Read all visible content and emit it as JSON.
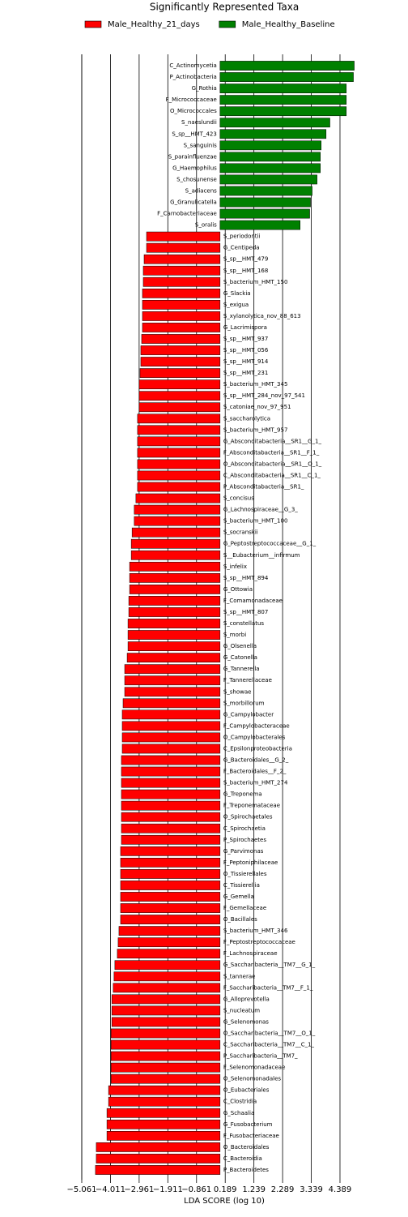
{
  "chart_data": {
    "type": "barh",
    "title": "Significantly Represented Taxa",
    "xlabel": "LDA SCORE (log 10)",
    "categories": [
      "C_Actinomycetia",
      "P_Actinobacteria",
      "G_Rothia",
      "F_Micrococcaceae",
      "O_Micrococcales",
      "S_naeslundii",
      "S_sp__HMT_423",
      "S_sanguinis",
      "S_parainfluenzae",
      "G_Haemophilus",
      "S_chosunense",
      "S_adiacens",
      "G_Granulicatella",
      "F_Carnobacteriaceae",
      "S_oralis",
      "S_periodontii",
      "G_Centipeda",
      "S_sp__HMT_479",
      "S_sp__HMT_168",
      "S_bacterium_HMT_150",
      "G_Slackia",
      "S_exigua",
      "S_xylanolytica_nov_88_613",
      "G_Lacrimispora",
      "S_sp__HMT_937",
      "S_sp__HMT_056",
      "S_sp__HMT_914",
      "S_sp__HMT_231",
      "S_bacterium_HMT_345",
      "S_sp__HMT_284_nov_97_541",
      "S_catoniae_nov_97_951",
      "S_saccharolytica",
      "S_bacterium_HMT_957",
      "G_Absconditabacteria__SR1__G_1_",
      "F_Absconditabacteria__SR1__F_1_",
      "O_Absconditabacteria__SR1__O_1_",
      "C_Absconditabacteria__SR1__C_1_",
      "P_Absconditabacteria__SR1_",
      "S_concisus",
      "G_Lachnospiraceae__G_3_",
      "S_bacterium_HMT_100",
      "S_socranskii",
      "G_Peptostreptococcaceae__G_1_",
      "S__Eubacterium__infirmum",
      "S_infelix",
      "S_sp__HMT_894",
      "G_Ottowia",
      "F_Comamonadaceae",
      "S_sp__HMT_807",
      "S_constellatus",
      "S_morbi",
      "G_Olsenella",
      "G_Catonella",
      "G_Tannerella",
      "F_Tannerellaceae",
      "S_showae",
      "S_morbillorum",
      "G_Campylobacter",
      "F_Campylobacteraceae",
      "O_Campylobacterales",
      "C_Epsilonproteobacteria",
      "G_Bacteroidales__G_2_",
      "F_Bacteroidales__F_2_",
      "S_bacterium_HMT_274",
      "G_Treponema",
      "F_Treponemataceae",
      "O_Spirochaetales",
      "C_Spirochaetia",
      "P_Spirochaetes",
      "G_Parvimonas",
      "F_Peptoniphilaceae",
      "O_Tissierellales",
      "C_Tissierellia",
      "G_Gemella",
      "F_Gemellaceae",
      "O_Bacillales",
      "S_bacterium_HMT_346",
      "F_Peptostreptococcaceae",
      "F_Lachnospiraceae",
      "G_Saccharibacteria__TM7__G_1_",
      "S_tannerae",
      "F_Saccharibacteria__TM7__F_1_",
      "G_Alloprevotella",
      "S_nucleatum",
      "G_Selenomonas",
      "O_Saccharibacteria__TM7__O_1_",
      "C_Saccharibacteria__TM7__C_1_",
      "P_Saccharibacteria__TM7_",
      "F_Selenomonadaceae",
      "O_Selenomonadales",
      "O_Eubacteriales",
      "C_Clostridia",
      "G_Schaalia",
      "G_Fusobacterium",
      "F_Fusobacteriaceae",
      "O_Bacteroidales",
      "C_Bacteroidia",
      "P_Bacteroidetes"
    ],
    "series": [
      {
        "name": "Male_Healthy_21_days",
        "color": "#ff0000",
        "values": [
          null,
          null,
          null,
          null,
          null,
          null,
          null,
          null,
          null,
          null,
          null,
          null,
          null,
          null,
          null,
          -2.69,
          -2.69,
          -2.78,
          -2.81,
          -2.81,
          -2.84,
          -2.84,
          -2.84,
          -2.84,
          -2.87,
          -2.9,
          -2.9,
          -2.93,
          -2.96,
          -2.96,
          -2.96,
          -3.02,
          -3.02,
          -3.02,
          -3.02,
          -3.02,
          -3.02,
          -3.02,
          -3.08,
          -3.14,
          -3.14,
          -3.22,
          -3.25,
          -3.25,
          -3.31,
          -3.31,
          -3.31,
          -3.34,
          -3.34,
          -3.37,
          -3.37,
          -3.37,
          -3.4,
          -3.49,
          -3.49,
          -3.49,
          -3.55,
          -3.58,
          -3.58,
          -3.58,
          -3.58,
          -3.61,
          -3.61,
          -3.61,
          -3.61,
          -3.61,
          -3.61,
          -3.61,
          -3.61,
          -3.64,
          -3.64,
          -3.64,
          -3.64,
          -3.64,
          -3.64,
          -3.64,
          -3.7,
          -3.73,
          -3.76,
          -3.85,
          -3.88,
          -3.91,
          -3.96,
          -3.96,
          -3.96,
          -3.99,
          -3.99,
          -3.99,
          -3.99,
          -3.99,
          -4.08,
          -4.08,
          -4.14,
          -4.14,
          -4.14,
          -4.53,
          -4.53,
          -4.56
        ]
      },
      {
        "name": "Male_Healthy_Baseline",
        "color": "#008000",
        "values": [
          4.91,
          4.88,
          4.62,
          4.62,
          4.62,
          4.02,
          3.88,
          3.7,
          3.67,
          3.67,
          3.55,
          3.37,
          3.31,
          3.28,
          2.93,
          null,
          null,
          null,
          null,
          null,
          null,
          null,
          null,
          null,
          null,
          null,
          null,
          null,
          null,
          null,
          null,
          null,
          null,
          null,
          null,
          null,
          null,
          null,
          null,
          null,
          null,
          null,
          null,
          null,
          null,
          null,
          null,
          null,
          null,
          null,
          null,
          null,
          null,
          null,
          null,
          null,
          null,
          null,
          null,
          null,
          null,
          null,
          null,
          null,
          null,
          null,
          null,
          null,
          null,
          null,
          null,
          null,
          null,
          null,
          null,
          null,
          null,
          null,
          null,
          null,
          null,
          null,
          null,
          null,
          null,
          null,
          null,
          null,
          null,
          null,
          null,
          null,
          null,
          null,
          null,
          null,
          null,
          null
        ]
      }
    ],
    "xlim": [
      -5.061,
      5.93
    ],
    "xticks": [
      {
        "value": -5.061,
        "label": "−5.061"
      },
      {
        "value": -4.011,
        "label": "−4.011"
      },
      {
        "value": -2.961,
        "label": "−2.961"
      },
      {
        "value": -1.911,
        "label": "−1.911"
      },
      {
        "value": -0.861,
        "label": "−0.861"
      },
      0.189,
      1.239,
      2.289,
      3.339,
      4.389
    ],
    "grid": true,
    "legend": "top"
  }
}
